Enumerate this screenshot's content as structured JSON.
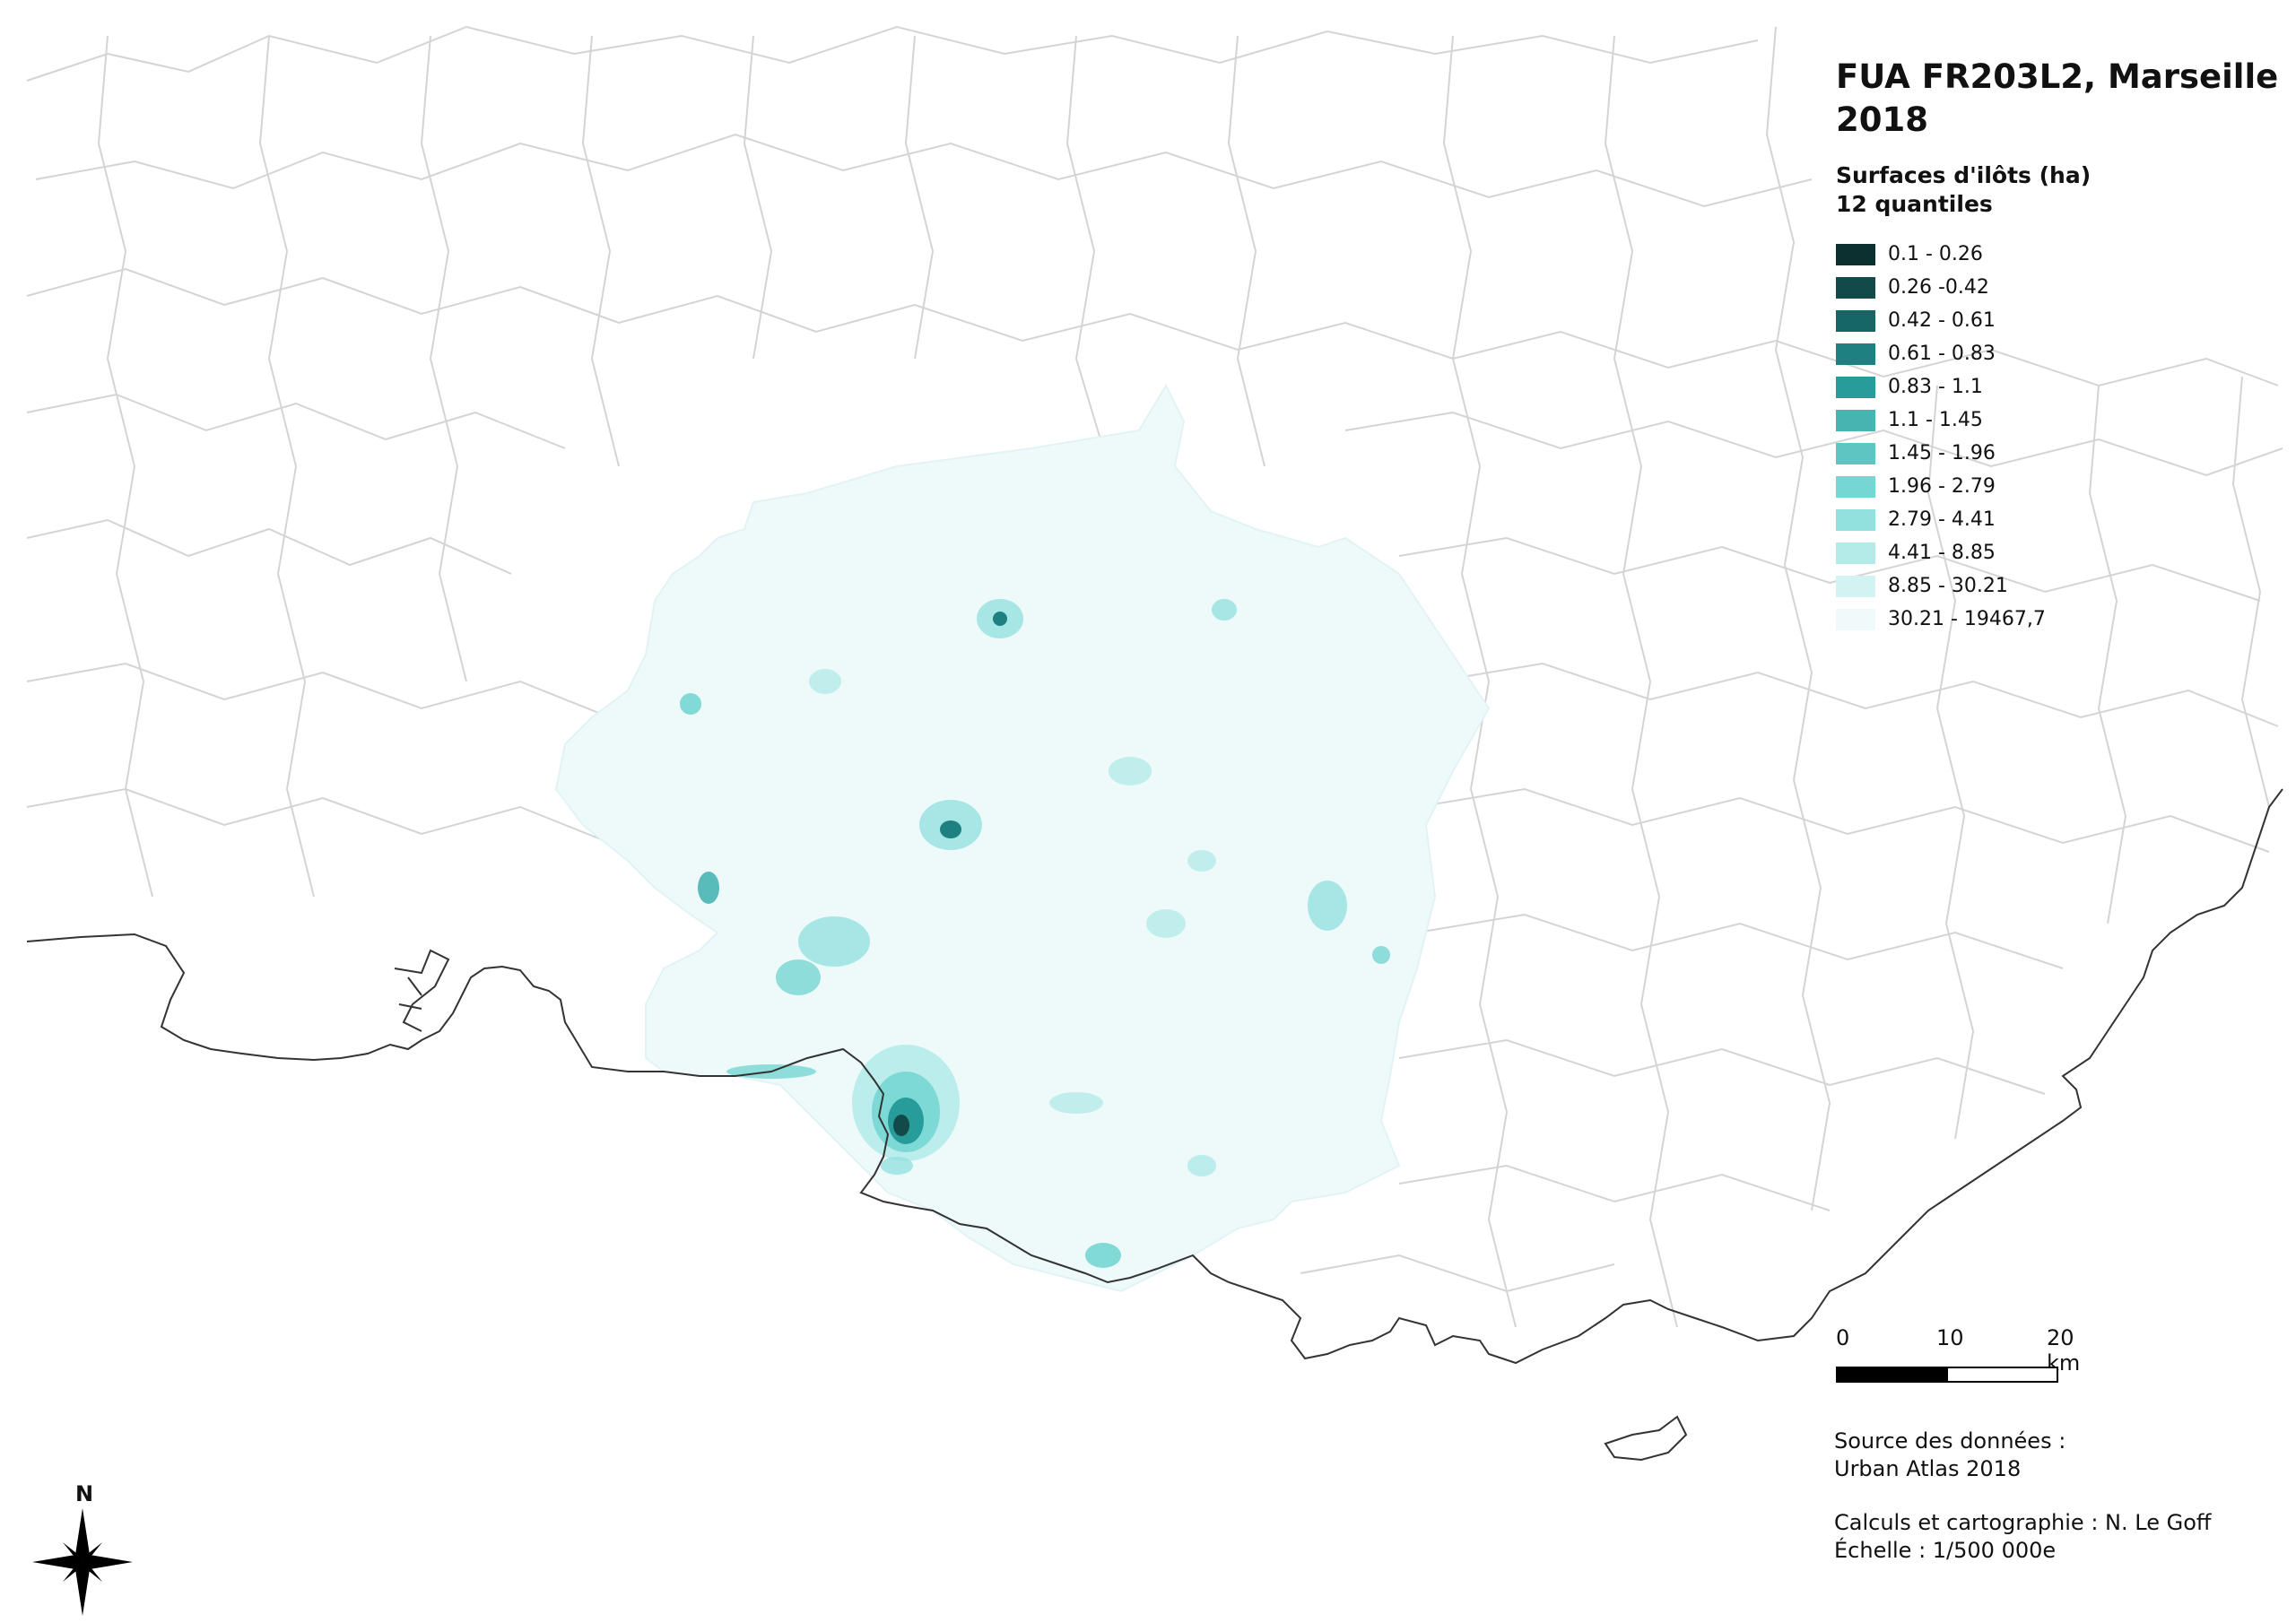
{
  "map": {
    "title_line1": "FUA FR203L2, Marseille",
    "title_line2": "2018",
    "legend_title_line1": "Surfaces d'ilôts (ha)",
    "legend_title_line2": "12 quantiles",
    "legend": [
      {
        "label": "0.1 - 0.26",
        "color": "#0c2f2f"
      },
      {
        "label": "0.26 -0.42",
        "color": "#124a4a"
      },
      {
        "label": "0.42 - 0.61",
        "color": "#176666"
      },
      {
        "label": "0.61 - 0.83",
        "color": "#1e8080"
      },
      {
        "label": "0.83 - 1.1",
        "color": "#279c9a"
      },
      {
        "label": "1.1 - 1.45",
        "color": "#48b4b2"
      },
      {
        "label": "1.45 - 1.96",
        "color": "#5fc5c3"
      },
      {
        "label": "1.96 - 2.79",
        "color": "#75d6d3"
      },
      {
        "label": "2.79 - 4.41",
        "color": "#93e1de"
      },
      {
        "label": "4.41 - 8.85",
        "color": "#b4ebe9"
      },
      {
        "label": "8.85 - 30.21",
        "color": "#d3f3f2"
      },
      {
        "label": "30.21 - 19467,7",
        "color": "#f0fafb"
      }
    ],
    "scale": {
      "labels": [
        "0",
        "10",
        "20 km"
      ]
    },
    "source_line1": "Source des données :",
    "source_line2": "Urban Atlas 2018",
    "credits_line1": "Calculs et cartographie : N. Le Goff",
    "credits_line2": "Échelle : 1/500 000e",
    "north_label": "N",
    "colors": {
      "coastline": "#333333",
      "boundaries": "#d4d4d4",
      "fua_fill": "#eef9fa"
    }
  }
}
